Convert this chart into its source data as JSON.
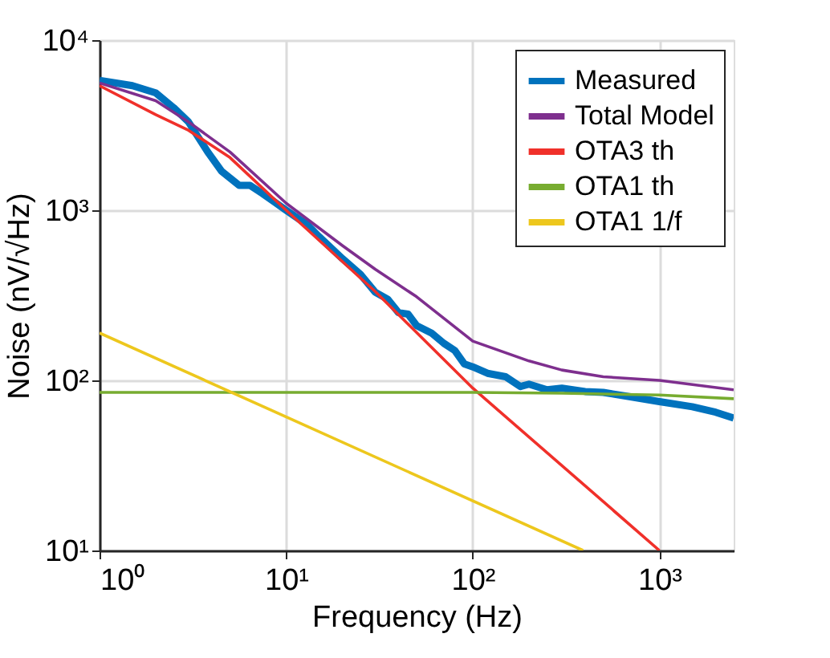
{
  "chart_data": {
    "type": "line",
    "xlabel": "Frequency (Hz)",
    "ylabel": "Noise (nV/√Hz)",
    "log": "xy",
    "grid": true,
    "legend": "top right",
    "line_style": "solid",
    "xlim": [
      1,
      2500
    ],
    "ylim": [
      10,
      10000
    ],
    "xticks": [
      {
        "value": 1,
        "label": "10⁰"
      },
      {
        "value": 10,
        "label": "10¹"
      },
      {
        "value": 100,
        "label": "10²"
      },
      {
        "value": 1000,
        "label": "10³"
      }
    ],
    "yticks": [
      {
        "value": 10,
        "label": "10¹"
      },
      {
        "value": 100,
        "label": "10²"
      },
      {
        "value": 1000,
        "label": "10³"
      },
      {
        "value": 10000,
        "label": "10⁴"
      }
    ],
    "series": [
      {
        "name": "Measured",
        "color": "#0072bd",
        "x": [
          1,
          1.5,
          2,
          2.5,
          3,
          3.8,
          4.5,
          5.6,
          6.4,
          7.5,
          10,
          13,
          15,
          20,
          25,
          30,
          35,
          40,
          45,
          50,
          60,
          70,
          80,
          90,
          100,
          120,
          150,
          180,
          200,
          250,
          300,
          400,
          500,
          700,
          1000,
          1500,
          2000,
          2500
        ],
        "values": [
          5800,
          5400,
          4900,
          4000,
          3300,
          2200,
          1700,
          1400,
          1400,
          1250,
          1000,
          820,
          700,
          520,
          420,
          330,
          300,
          250,
          245,
          210,
          190,
          165,
          150,
          125,
          120,
          110,
          105,
          92,
          95,
          88,
          90,
          86,
          85,
          80,
          75,
          70,
          65,
          60
        ]
      },
      {
        "name": "Total Model",
        "color": "#7e2f8e",
        "x": [
          1,
          2,
          3,
          5,
          10,
          20,
          30,
          50,
          100,
          200,
          300,
          500,
          1000,
          2500
        ],
        "values": [
          5600,
          4400,
          3300,
          2200,
          1100,
          620,
          450,
          310,
          170,
          130,
          115,
          105,
          100,
          88
        ]
      },
      {
        "name": "OTA3 th",
        "color": "#f0302a",
        "x": [
          1,
          2,
          3,
          5,
          10,
          30,
          100,
          1000
        ],
        "values": [
          5400,
          3650,
          2950,
          2040,
          1000,
          333,
          90,
          10
        ]
      },
      {
        "name": "OTA1 th",
        "color": "#77ac30",
        "x": [
          1,
          100,
          300,
          1000,
          2500
        ],
        "values": [
          85,
          85,
          84,
          82,
          78
        ]
      },
      {
        "name": "OTA1 1/f",
        "color": "#edc71d",
        "x": [
          1,
          390
        ],
        "values": [
          190,
          10
        ]
      }
    ]
  }
}
